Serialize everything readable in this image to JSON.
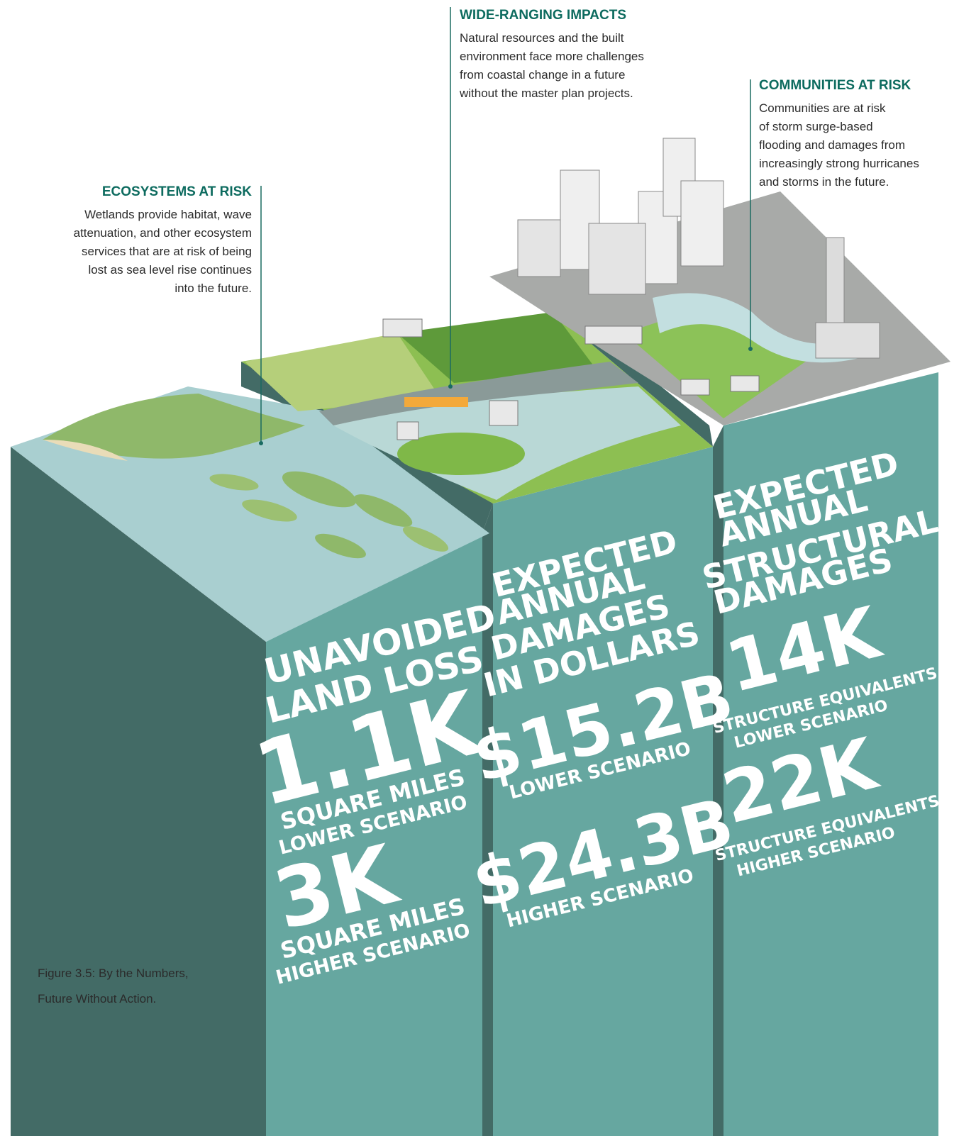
{
  "callouts": [
    {
      "title": "ECOSYSTEMS AT RISK",
      "lines": [
        "Wetlands provide habitat, wave",
        "attenuation, and other ecosystem",
        "services that are at risk of being",
        "lost as sea level rise continues",
        "into the future."
      ]
    },
    {
      "title": "WIDE-RANGING IMPACTS",
      "lines": [
        "Natural resources and the built",
        "environment face more challenges",
        "from coastal change in a future",
        "without the master plan projects."
      ]
    },
    {
      "title": "COMMUNITIES AT RISK",
      "lines": [
        "Communities are at risk",
        "of storm surge-based",
        "flooding and damages from",
        "increasingly strong hurricanes",
        "and storms in the future."
      ]
    }
  ],
  "columns": [
    {
      "heading": [
        "UNAVOIDED",
        "LAND LOSS"
      ],
      "stats": [
        {
          "value": "1.1K",
          "unit": [
            "SQUARE MILES",
            "LOWER SCENARIO"
          ]
        },
        {
          "value": "3K",
          "unit": [
            "SQUARE MILES",
            "HIGHER SCENARIO"
          ]
        }
      ]
    },
    {
      "heading": [
        "EXPECTED",
        "ANNUAL",
        "DAMAGES",
        "IN DOLLARS"
      ],
      "stats": [
        {
          "value": "$15.2B",
          "unit": [
            "LOWER SCENARIO"
          ]
        },
        {
          "value": "$24.3B",
          "unit": [
            "HIGHER SCENARIO"
          ]
        }
      ]
    },
    {
      "heading": [
        "EXPECTED",
        "ANNUAL",
        "STRUCTURAL",
        "DAMAGES"
      ],
      "stats": [
        {
          "value": "14K",
          "unit": [
            "STRUCTURE EQUIVALENTS",
            "LOWER SCENARIO"
          ]
        },
        {
          "value": "22K",
          "unit": [
            "STRUCTURE EQUIVALENTS",
            "HIGHER SCENARIO"
          ]
        }
      ]
    }
  ],
  "caption": [
    "Figure 3.5: By the Numbers,",
    "Future Without Action."
  ]
}
